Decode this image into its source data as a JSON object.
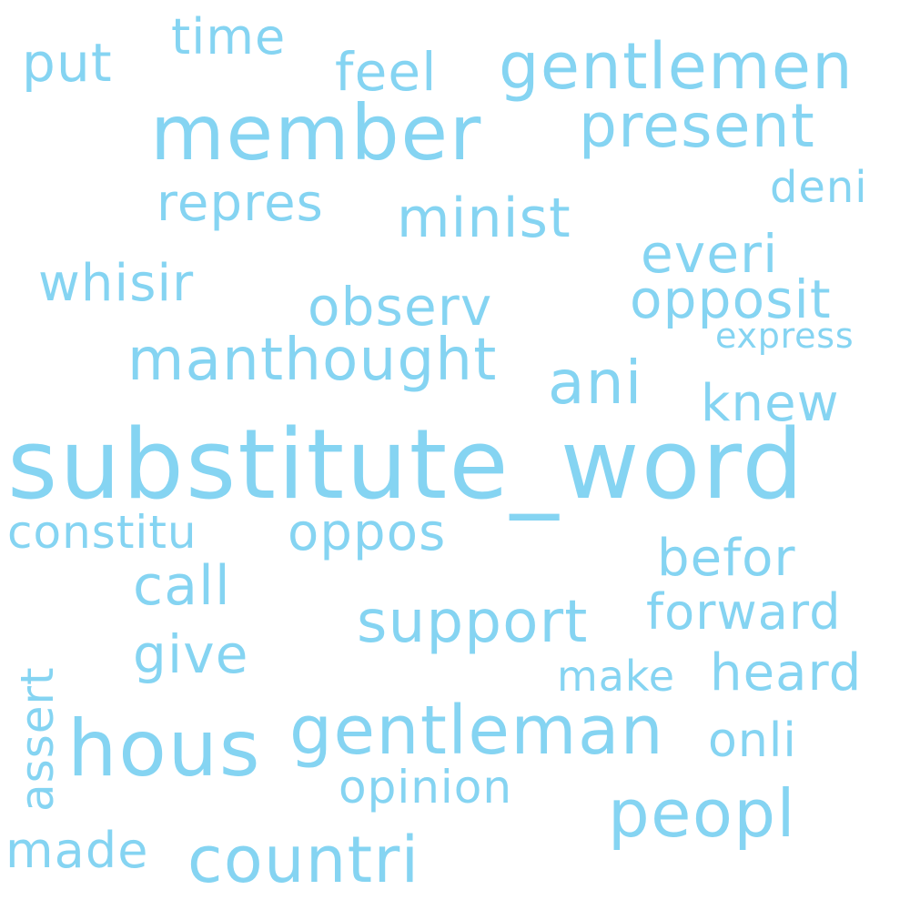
{
  "wordcloud": {
    "color": "#85d4f2",
    "words": [
      {
        "key": "substitute_word",
        "text": "substitute_word"
      },
      {
        "key": "member",
        "text": "member"
      },
      {
        "key": "hous",
        "text": "hous"
      },
      {
        "key": "gentleman",
        "text": "gentleman"
      },
      {
        "key": "gentlemen",
        "text": "gentlemen"
      },
      {
        "key": "countri",
        "text": "countri"
      },
      {
        "key": "peopl",
        "text": "peopl"
      },
      {
        "key": "present",
        "text": "present"
      },
      {
        "key": "manthought",
        "text": "manthought"
      },
      {
        "key": "support",
        "text": "support"
      },
      {
        "key": "ani",
        "text": "ani"
      },
      {
        "key": "opposit",
        "text": "opposit"
      },
      {
        "key": "minist",
        "text": "minist"
      },
      {
        "key": "everi",
        "text": "everi"
      },
      {
        "key": "observ",
        "text": "observ"
      },
      {
        "key": "repres",
        "text": "repres"
      },
      {
        "key": "call",
        "text": "call"
      },
      {
        "key": "oppos",
        "text": "oppos"
      },
      {
        "key": "heard",
        "text": "heard"
      },
      {
        "key": "befor",
        "text": "befor"
      },
      {
        "key": "forward",
        "text": "forward"
      },
      {
        "key": "give",
        "text": "give"
      },
      {
        "key": "time",
        "text": "time"
      },
      {
        "key": "put",
        "text": "put"
      },
      {
        "key": "feel",
        "text": "feel"
      },
      {
        "key": "whisir",
        "text": "whisir"
      },
      {
        "key": "constitu",
        "text": "constitu"
      },
      {
        "key": "made",
        "text": "made"
      },
      {
        "key": "opinion",
        "text": "opinion"
      },
      {
        "key": "onli",
        "text": "onli"
      },
      {
        "key": "knew",
        "text": "knew"
      },
      {
        "key": "make",
        "text": "make"
      },
      {
        "key": "deni",
        "text": "deni"
      },
      {
        "key": "express",
        "text": "express"
      },
      {
        "key": "assert",
        "text": "assert"
      }
    ]
  }
}
